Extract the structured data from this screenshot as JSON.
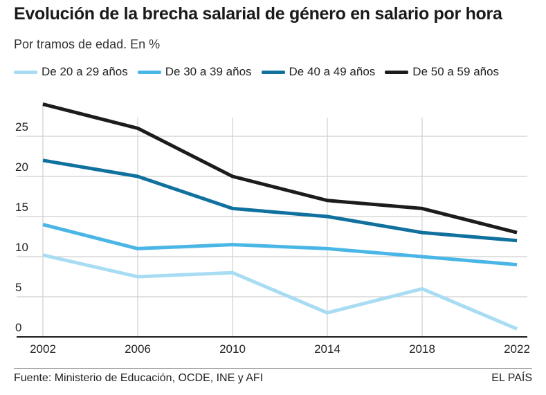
{
  "chart_data": {
    "type": "line",
    "title": "Evolución de la brecha salarial de género en salario por hora",
    "subtitle": "Por tramos de edad. En %",
    "x": [
      "2002",
      "2006",
      "2010",
      "2014",
      "2018",
      "2022"
    ],
    "y_ticks": [
      "0",
      "5",
      "10",
      "15",
      "20",
      "25"
    ],
    "ylim": [
      0,
      30
    ],
    "grid": true,
    "legend_position": "top",
    "series": [
      {
        "name": "De 20 a 29 años",
        "color": "#a8dcf3",
        "values": [
          10.2,
          7.5,
          8.0,
          3.0,
          6.0,
          1.0
        ]
      },
      {
        "name": "De 30 a 39 años",
        "color": "#4ab6e6",
        "values": [
          14.0,
          11.0,
          11.5,
          11.0,
          10.0,
          9.0
        ]
      },
      {
        "name": "De 40 a 49 años",
        "color": "#10719e",
        "values": [
          22.0,
          20.0,
          16.0,
          15.0,
          13.0,
          12.0
        ]
      },
      {
        "name": "De 50 a 59 años",
        "color": "#1c1c1c",
        "values": [
          29.0,
          26.0,
          20.0,
          17.0,
          16.0,
          13.0
        ]
      }
    ]
  },
  "footer": {
    "source": "Fuente: Ministerio de Educación, OCDE, INE y AFI",
    "brand": "EL PAÍS"
  }
}
